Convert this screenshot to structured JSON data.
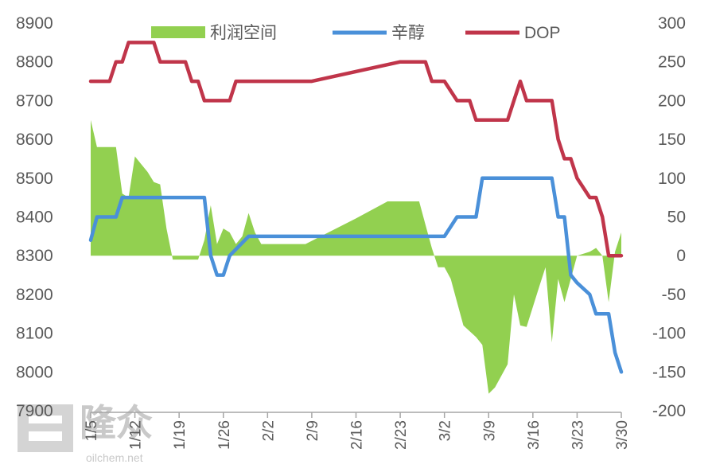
{
  "chart_data": {
    "type": "line",
    "x_type": "date",
    "x_range": [
      "1/5",
      "3/30"
    ],
    "x_ticks": [
      "1/5",
      "1/12",
      "1/19",
      "1/26",
      "2/2",
      "2/9",
      "2/16",
      "2/23",
      "3/2",
      "3/9",
      "3/16",
      "3/23",
      "3/30"
    ],
    "left_axis": {
      "ylim": [
        7900,
        8900
      ],
      "ticks": [
        7900,
        8000,
        8100,
        8200,
        8300,
        8400,
        8500,
        8600,
        8700,
        8800,
        8900
      ]
    },
    "right_axis": {
      "ylim": [
        -200,
        300
      ],
      "ticks": [
        -200,
        -150,
        -100,
        -50,
        0,
        50,
        100,
        150,
        200,
        250,
        300
      ]
    },
    "legend": {
      "placement": "top"
    },
    "series": [
      {
        "name": "利润空间",
        "kind": "area",
        "axis": "right",
        "color": "#92d050",
        "points": [
          {
            "x": "1/5",
            "y": 175
          },
          {
            "x": "1/6",
            "y": 140
          },
          {
            "x": "1/7",
            "y": 140
          },
          {
            "x": "1/8",
            "y": 140
          },
          {
            "x": "1/9",
            "y": 140
          },
          {
            "x": "1/10",
            "y": 80
          },
          {
            "x": "1/11",
            "y": 75
          },
          {
            "x": "1/12",
            "y": 128
          },
          {
            "x": "1/13",
            "y": 118
          },
          {
            "x": "1/14",
            "y": 108
          },
          {
            "x": "1/15",
            "y": 95
          },
          {
            "x": "1/16",
            "y": 92
          },
          {
            "x": "1/17",
            "y": 35
          },
          {
            "x": "1/18",
            "y": -5
          },
          {
            "x": "1/19",
            "y": -5
          },
          {
            "x": "1/20",
            "y": -5
          },
          {
            "x": "1/21",
            "y": -5
          },
          {
            "x": "1/22",
            "y": -5
          },
          {
            "x": "1/23",
            "y": 20
          },
          {
            "x": "1/24",
            "y": 65
          },
          {
            "x": "1/25",
            "y": 15
          },
          {
            "x": "1/26",
            "y": 35
          },
          {
            "x": "1/27",
            "y": 30
          },
          {
            "x": "1/28",
            "y": 15
          },
          {
            "x": "1/29",
            "y": 25
          },
          {
            "x": "1/30",
            "y": 55
          },
          {
            "x": "1/31",
            "y": 30
          },
          {
            "x": "2/1",
            "y": 15
          },
          {
            "x": "2/8",
            "y": 15
          },
          {
            "x": "2/16",
            "y": 48
          },
          {
            "x": "2/21",
            "y": 70
          },
          {
            "x": "2/26",
            "y": 70
          },
          {
            "x": "2/27",
            "y": 40
          },
          {
            "x": "2/28",
            "y": 10
          },
          {
            "x": "3/1",
            "y": -15
          },
          {
            "x": "3/2",
            "y": -15
          },
          {
            "x": "3/3",
            "y": -30
          },
          {
            "x": "3/4",
            "y": -60
          },
          {
            "x": "3/5",
            "y": -90
          },
          {
            "x": "3/7",
            "y": -105
          },
          {
            "x": "3/8",
            "y": -115
          },
          {
            "x": "3/9",
            "y": -178
          },
          {
            "x": "3/10",
            "y": -170
          },
          {
            "x": "3/12",
            "y": -140
          },
          {
            "x": "3/13",
            "y": -50
          },
          {
            "x": "3/14",
            "y": -90
          },
          {
            "x": "3/15",
            "y": -92
          },
          {
            "x": "3/17",
            "y": -40
          },
          {
            "x": "3/18",
            "y": -15
          },
          {
            "x": "3/19",
            "y": -112
          },
          {
            "x": "3/20",
            "y": -30
          },
          {
            "x": "3/21",
            "y": -60
          },
          {
            "x": "3/22",
            "y": -30
          },
          {
            "x": "3/23",
            "y": 0
          },
          {
            "x": "3/25",
            "y": 5
          },
          {
            "x": "3/26",
            "y": 10
          },
          {
            "x": "3/27",
            "y": 0
          },
          {
            "x": "3/28",
            "y": -60
          },
          {
            "x": "3/29",
            "y": 5
          },
          {
            "x": "3/30",
            "y": 30
          }
        ]
      },
      {
        "name": "辛醇",
        "kind": "line",
        "axis": "left",
        "color": "#4a90d9",
        "points": [
          {
            "x": "1/5",
            "y": 8340
          },
          {
            "x": "1/6",
            "y": 8400
          },
          {
            "x": "1/9",
            "y": 8400
          },
          {
            "x": "1/10",
            "y": 8450
          },
          {
            "x": "1/23",
            "y": 8450
          },
          {
            "x": "1/24",
            "y": 8300
          },
          {
            "x": "1/25",
            "y": 8250
          },
          {
            "x": "1/26",
            "y": 8250
          },
          {
            "x": "1/27",
            "y": 8300
          },
          {
            "x": "1/30",
            "y": 8350
          },
          {
            "x": "2/27",
            "y": 8350
          },
          {
            "x": "3/2",
            "y": 8350
          },
          {
            "x": "3/4",
            "y": 8400
          },
          {
            "x": "3/7",
            "y": 8400
          },
          {
            "x": "3/8",
            "y": 8500
          },
          {
            "x": "3/19",
            "y": 8500
          },
          {
            "x": "3/20",
            "y": 8400
          },
          {
            "x": "3/21",
            "y": 8400
          },
          {
            "x": "3/22",
            "y": 8250
          },
          {
            "x": "3/23",
            "y": 8230
          },
          {
            "x": "3/25",
            "y": 8200
          },
          {
            "x": "3/26",
            "y": 8150
          },
          {
            "x": "3/28",
            "y": 8150
          },
          {
            "x": "3/29",
            "y": 8050
          },
          {
            "x": "3/30",
            "y": 8000
          }
        ]
      },
      {
        "name": "DOP",
        "kind": "line",
        "axis": "left",
        "color": "#c0354a",
        "points": [
          {
            "x": "1/5",
            "y": 8750
          },
          {
            "x": "1/8",
            "y": 8750
          },
          {
            "x": "1/9",
            "y": 8800
          },
          {
            "x": "1/10",
            "y": 8800
          },
          {
            "x": "1/11",
            "y": 8850
          },
          {
            "x": "1/15",
            "y": 8850
          },
          {
            "x": "1/16",
            "y": 8800
          },
          {
            "x": "1/20",
            "y": 8800
          },
          {
            "x": "1/21",
            "y": 8750
          },
          {
            "x": "1/22",
            "y": 8750
          },
          {
            "x": "1/23",
            "y": 8700
          },
          {
            "x": "1/27",
            "y": 8700
          },
          {
            "x": "1/28",
            "y": 8750
          },
          {
            "x": "2/9",
            "y": 8750
          },
          {
            "x": "2/23",
            "y": 8800
          },
          {
            "x": "2/27",
            "y": 8800
          },
          {
            "x": "2/28",
            "y": 8750
          },
          {
            "x": "3/2",
            "y": 8750
          },
          {
            "x": "3/4",
            "y": 8700
          },
          {
            "x": "3/6",
            "y": 8700
          },
          {
            "x": "3/7",
            "y": 8650
          },
          {
            "x": "3/12",
            "y": 8650
          },
          {
            "x": "3/13",
            "y": 8700
          },
          {
            "x": "3/14",
            "y": 8750
          },
          {
            "x": "3/15",
            "y": 8700
          },
          {
            "x": "3/19",
            "y": 8700
          },
          {
            "x": "3/20",
            "y": 8600
          },
          {
            "x": "3/21",
            "y": 8550
          },
          {
            "x": "3/22",
            "y": 8550
          },
          {
            "x": "3/23",
            "y": 8500
          },
          {
            "x": "3/25",
            "y": 8450
          },
          {
            "x": "3/26",
            "y": 8450
          },
          {
            "x": "3/27",
            "y": 8400
          },
          {
            "x": "3/28",
            "y": 8300
          },
          {
            "x": "3/30",
            "y": 8300
          }
        ]
      }
    ]
  },
  "watermark": {
    "brand": "隆众",
    "url": "oilchem.net"
  }
}
